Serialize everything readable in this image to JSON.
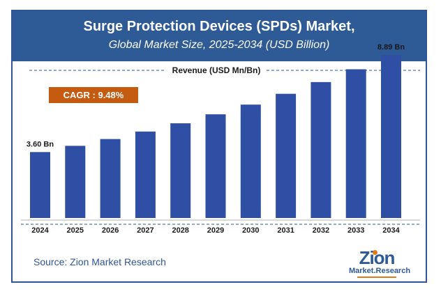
{
  "header": {
    "title": "Surge Protection Devices (SPDs) Market,",
    "subtitle": "Global Market Size, 2025-2034 (USD Billion)"
  },
  "revenue_label": "Revenue (USD Mn/Bn)",
  "cagr": "CAGR : 9.48%",
  "source": "Source: Zion Market Research",
  "logo": {
    "big": "Zion",
    "small": "Market.Research"
  },
  "colors": {
    "bar": "#2e4fa3",
    "header": "#2e5a96",
    "cagr": "#c55a11",
    "accent": "#e07b1a"
  },
  "chart_data": {
    "type": "bar",
    "categories": [
      "2024",
      "2025",
      "2026",
      "2027",
      "2028",
      "2029",
      "2030",
      "2031",
      "2032",
      "2033",
      "2034"
    ],
    "values": [
      3.6,
      3.94,
      4.31,
      4.72,
      5.17,
      5.66,
      6.19,
      6.78,
      7.42,
      8.12,
      8.89
    ],
    "data_labels": [
      "3.60 Bn",
      "",
      "",
      "",
      "",
      "",
      "",
      "",
      "",
      "",
      "8.89 Bn"
    ],
    "ylim": [
      0,
      10
    ],
    "grid": false
  }
}
